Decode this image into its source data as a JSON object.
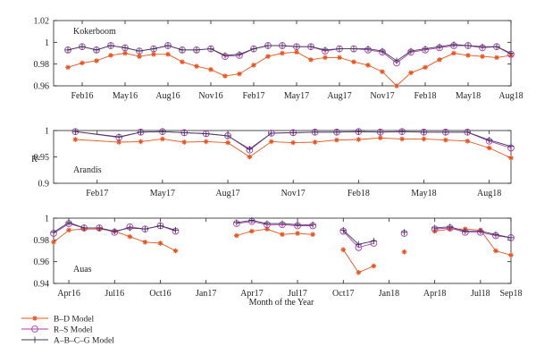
{
  "chart_data": [
    {
      "type": "line",
      "panel_label": "Kokerboom",
      "ylim": [
        0.96,
        1.02
      ],
      "yticks": [
        "0.96",
        "0.98",
        "1",
        "1.02"
      ],
      "xticks": [
        "Feb16",
        "May16",
        "Aug16",
        "Nov16",
        "Feb17",
        "May17",
        "Aug17",
        "Nov17",
        "Feb18",
        "May18",
        "Aug18"
      ],
      "series": [
        {
          "key": "bd",
          "x": [
            "Jan16",
            "Feb16",
            "Mar16",
            "Apr16",
            "May16",
            "Jun16",
            "Jul16",
            "Aug16",
            "Sep16",
            "Oct16",
            "Nov16",
            "Dec16",
            "Jan17",
            "Feb17",
            "Mar17",
            "Apr17",
            "May17",
            "Jun17",
            "Jul17",
            "Aug17",
            "Sep17",
            "Oct17",
            "Nov17",
            "Dec17",
            "Jan18",
            "Feb18",
            "Mar18",
            "Apr18",
            "May18",
            "Jun18",
            "Jul18",
            "Aug18"
          ],
          "values": [
            0.977,
            0.981,
            0.983,
            0.988,
            0.99,
            0.987,
            0.989,
            0.989,
            0.982,
            0.978,
            0.975,
            0.969,
            0.971,
            0.979,
            0.987,
            0.99,
            0.991,
            0.984,
            0.986,
            0.986,
            0.982,
            0.979,
            0.973,
            0.96,
            0.972,
            0.977,
            0.984,
            0.99,
            0.988,
            0.987,
            0.986,
            0.988
          ]
        },
        {
          "key": "rs",
          "x": [
            "Jan16",
            "Feb16",
            "Mar16",
            "Apr16",
            "May16",
            "Jun16",
            "Jul16",
            "Aug16",
            "Sep16",
            "Oct16",
            "Nov16",
            "Dec16",
            "Jan17",
            "Feb17",
            "Mar17",
            "Apr17",
            "May17",
            "Jun17",
            "Jul17",
            "Aug17",
            "Sep17",
            "Oct17",
            "Nov17",
            "Dec17",
            "Jan18",
            "Feb18",
            "Mar18",
            "Apr18",
            "May18",
            "Jun18",
            "Jul18",
            "Aug18"
          ],
          "values": [
            0.993,
            0.996,
            0.993,
            0.997,
            0.995,
            0.992,
            0.994,
            0.997,
            0.993,
            0.993,
            0.994,
            0.987,
            0.988,
            0.994,
            0.997,
            0.997,
            0.996,
            0.996,
            0.992,
            0.994,
            0.994,
            0.993,
            0.991,
            0.981,
            0.991,
            0.993,
            0.995,
            0.997,
            0.997,
            0.995,
            0.996,
            0.989
          ]
        },
        {
          "key": "abcg",
          "x": [
            "Jan16",
            "Feb16",
            "Mar16",
            "Apr16",
            "May16",
            "Jun16",
            "Jul16",
            "Aug16",
            "Sep16",
            "Oct16",
            "Nov16",
            "Dec16",
            "Jan17",
            "Feb17",
            "Mar17",
            "Apr17",
            "May17",
            "Jun17",
            "Jul17",
            "Aug17",
            "Sep17",
            "Oct17",
            "Nov17",
            "Dec17",
            "Jan18",
            "Feb18",
            "Mar18",
            "Apr18",
            "May18",
            "Jun18",
            "Jul18",
            "Aug18"
          ],
          "values": [
            0.993,
            0.996,
            0.993,
            0.997,
            0.995,
            0.992,
            0.994,
            0.997,
            0.993,
            0.993,
            0.994,
            0.988,
            0.989,
            0.994,
            0.997,
            0.997,
            0.996,
            0.996,
            0.993,
            0.994,
            0.994,
            0.994,
            0.992,
            0.983,
            0.992,
            0.994,
            0.996,
            0.998,
            0.997,
            0.996,
            0.996,
            0.99
          ]
        }
      ]
    },
    {
      "type": "line",
      "panel_label": "Arandis",
      "ylabel": "R²",
      "ylim": [
        0.9,
        1.0
      ],
      "yticks": [
        "0.9",
        "0.95",
        "1"
      ],
      "xticks": [
        "Feb17",
        "May17",
        "Aug17",
        "Nov17",
        "Feb18",
        "May18",
        "Aug18"
      ],
      "series": [
        {
          "key": "bd",
          "x": [
            "Jan17",
            "Mar17",
            "Apr17",
            "May17",
            "Jun17",
            "Jul17",
            "Aug17",
            "Sep17",
            "Oct17",
            "Nov17",
            "Dec17",
            "Jan18",
            "Feb18",
            "Mar18",
            "Apr18",
            "May18",
            "Jun18",
            "Jul18",
            "Aug18",
            "Sep18"
          ],
          "values": [
            0.983,
            0.978,
            0.979,
            0.984,
            0.978,
            0.979,
            0.977,
            0.95,
            0.979,
            0.977,
            0.978,
            0.982,
            0.983,
            0.986,
            0.984,
            0.984,
            0.982,
            0.98,
            0.967,
            0.948
          ]
        },
        {
          "key": "rs",
          "x": [
            "Jan17",
            "Mar17",
            "Apr17",
            "May17",
            "Jun17",
            "Jul17",
            "Aug17",
            "Sep17",
            "Oct17",
            "Nov17",
            "Dec17",
            "Jan18",
            "Feb18",
            "Mar18",
            "Apr18",
            "May18",
            "Jun18",
            "Jul18",
            "Aug18",
            "Sep18"
          ],
          "values": [
            0.998,
            0.987,
            0.997,
            0.998,
            0.996,
            0.994,
            0.99,
            0.963,
            0.995,
            0.996,
            0.997,
            0.997,
            0.998,
            0.997,
            0.998,
            0.997,
            0.997,
            0.997,
            0.98,
            0.967
          ]
        },
        {
          "key": "abcg",
          "x": [
            "Jan17",
            "Mar17",
            "Apr17",
            "May17",
            "Jun17",
            "Jul17",
            "Aug17",
            "Sep17",
            "Oct17",
            "Nov17",
            "Dec17",
            "Jan18",
            "Feb18",
            "Mar18",
            "Apr18",
            "May18",
            "Jun18",
            "Jul18",
            "Aug18",
            "Sep18"
          ],
          "values": [
            0.998,
            0.988,
            0.997,
            0.998,
            0.996,
            0.994,
            0.99,
            0.965,
            0.995,
            0.996,
            0.997,
            0.997,
            0.998,
            0.997,
            0.998,
            0.997,
            0.997,
            0.997,
            0.982,
            0.97
          ]
        }
      ]
    },
    {
      "type": "line",
      "panel_label": "Auas",
      "ylim": [
        0.94,
        1.0
      ],
      "yticks": [
        "0.94",
        "0.96",
        "0.98",
        "1"
      ],
      "xticks": [
        "Apr16",
        "Jul16",
        "Oct16",
        "Jan17",
        "Apr17",
        "Jul17",
        "Oct17",
        "Jan18",
        "Apr18",
        "Jul18",
        "Sep18"
      ],
      "series": [
        {
          "key": "bd",
          "segments": [
            {
              "x": [
                "Mar16",
                "Apr16",
                "May16",
                "Jun16",
                "Jul16",
                "Aug16",
                "Sep16",
                "Oct16",
                "Nov16"
              ],
              "values": [
                0.978,
                0.989,
                0.99,
                0.99,
                0.988,
                0.983,
                0.978,
                0.977,
                0.97
              ]
            },
            {
              "x": [
                "Mar17",
                "Apr17",
                "May17",
                "Jun17",
                "Jul17",
                "Aug17"
              ],
              "values": [
                0.984,
                0.988,
                0.99,
                0.985,
                0.986,
                0.985
              ]
            },
            {
              "x": [
                "Oct17",
                "Nov17",
                "Dec17"
              ],
              "values": [
                0.971,
                0.95,
                0.956
              ]
            },
            {
              "x": [
                "Feb18"
              ],
              "values": [
                0.969
              ]
            },
            {
              "x": [
                "Apr18",
                "May18",
                "Jun18",
                "Jul18",
                "Aug18",
                "Sep18"
              ],
              "values": [
                0.988,
                0.99,
                0.99,
                0.989,
                0.97,
                0.966
              ]
            }
          ]
        },
        {
          "key": "rs",
          "segments": [
            {
              "x": [
                "Mar16",
                "Apr16",
                "May16",
                "Jun16",
                "Jul16",
                "Aug16",
                "Sep16",
                "Oct16",
                "Nov16"
              ],
              "values": [
                0.986,
                0.995,
                0.991,
                0.991,
                0.987,
                0.992,
                0.99,
                0.993,
                0.988
              ]
            },
            {
              "x": [
                "Mar17",
                "Apr17",
                "May17",
                "Jun17",
                "Jul17",
                "Aug17"
              ],
              "values": [
                0.995,
                0.997,
                0.994,
                0.994,
                0.993,
                0.993
              ]
            },
            {
              "x": [
                "Oct17",
                "Nov17",
                "Dec17"
              ],
              "values": [
                0.988,
                0.973,
                0.977
              ]
            },
            {
              "x": [
                "Feb18"
              ],
              "values": [
                0.986
              ]
            },
            {
              "x": [
                "Apr18",
                "May18",
                "Jun18",
                "Jul18",
                "Aug18",
                "Sep18"
              ],
              "values": [
                0.99,
                0.991,
                0.987,
                0.987,
                0.984,
                0.982
              ]
            }
          ]
        },
        {
          "key": "abcg",
          "segments": [
            {
              "x": [
                "Mar16",
                "Apr16",
                "May16",
                "Jun16",
                "Jul16",
                "Aug16",
                "Sep16",
                "Oct16",
                "Nov16"
              ],
              "values": [
                0.987,
                0.996,
                0.991,
                0.991,
                0.988,
                0.991,
                0.99,
                0.993,
                0.989
              ]
            },
            {
              "x": [
                "Mar17",
                "Apr17",
                "May17",
                "Jun17",
                "Jul17",
                "Aug17"
              ],
              "values": [
                0.996,
                0.998,
                0.995,
                0.995,
                0.994,
                0.994
              ]
            },
            {
              "x": [
                "Oct17",
                "Nov17",
                "Dec17"
              ],
              "values": [
                0.989,
                0.976,
                0.979
              ]
            },
            {
              "x": [
                "Feb18"
              ],
              "values": [
                0.987
              ]
            },
            {
              "x": [
                "Apr18",
                "May18",
                "Jun18",
                "Jul18",
                "Aug18",
                "Sep18"
              ],
              "values": [
                0.991,
                0.992,
                0.988,
                0.988,
                0.985,
                0.982
              ]
            }
          ]
        }
      ]
    }
  ],
  "xlabel": "Month of the Year",
  "legend": {
    "position": "bottom-left",
    "entries": [
      {
        "key": "bd",
        "name": "B–D Model",
        "color": "#e8531d",
        "marker": "asterisk"
      },
      {
        "key": "rs",
        "name": "R–S Model",
        "color": "#b03ab0",
        "marker": "circle"
      },
      {
        "key": "abcg",
        "name": "A–B–C–G Model",
        "color": "#3a3a5a",
        "marker": "plus"
      }
    ]
  }
}
